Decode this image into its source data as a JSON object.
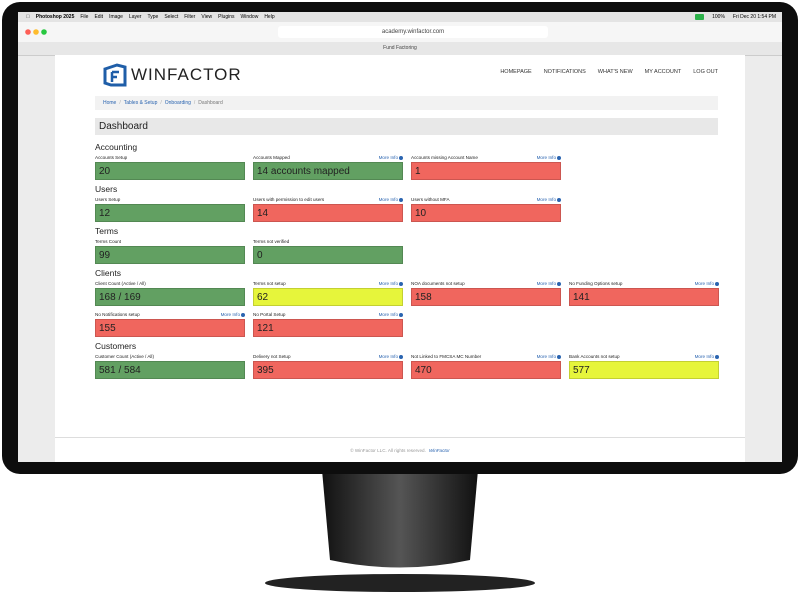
{
  "menubar": {
    "app": "Photoshop 2025",
    "menus": [
      "File",
      "Edit",
      "Image",
      "Layer",
      "Type",
      "Select",
      "Filter",
      "View",
      "Plugins",
      "Window",
      "Help"
    ],
    "battery": "100%",
    "clock": "Fri Dec 20  1:54 PM"
  },
  "browser": {
    "url": "academy.winfactor.com",
    "tab": "Fund Factoring"
  },
  "site": {
    "logo": "WINFACTOR",
    "nav": [
      "HOMEPAGE",
      "NOTIFICATIONS",
      "WHAT'S NEW",
      "MY ACCOUNT",
      "LOG OUT"
    ],
    "breadcrumb": [
      "Home",
      "Tables & Setup",
      "Onboarding",
      "Dashboard"
    ],
    "heading": "Dashboard",
    "sections": [
      {
        "title": "Accounting",
        "tiles": [
          {
            "label": "Accounts Setup",
            "value": 20,
            "status": "green"
          },
          {
            "label": "Accounts Mapped",
            "value": "14 accounts mapped",
            "status": "green",
            "more": "More Info"
          },
          {
            "label": "Accounts missing Account Name",
            "value": 1,
            "status": "red",
            "more": "More Info"
          }
        ]
      },
      {
        "title": "Users",
        "tiles": [
          {
            "label": "Users Setup",
            "value": 12,
            "status": "green"
          },
          {
            "label": "Users with permission to edit users",
            "value": 14,
            "status": "red",
            "more": "More Info"
          },
          {
            "label": "Users without MFA",
            "value": 10,
            "status": "red",
            "more": "More Info"
          }
        ]
      },
      {
        "title": "Terms",
        "tiles": [
          {
            "label": "Terms Count",
            "value": 99,
            "status": "green"
          },
          {
            "label": "Terms not verified",
            "value": 0,
            "status": "green"
          }
        ]
      },
      {
        "title": "Clients",
        "tiles": [
          {
            "label": "Client Count (Active / All)",
            "value": "168 / 169",
            "status": "green"
          },
          {
            "label": "Terms not setup",
            "value": 62,
            "status": "yellow",
            "more": "More Info"
          },
          {
            "label": "NOA documents not setup",
            "value": 158,
            "status": "red",
            "more": "More Info"
          },
          {
            "label": "No Funding Options setup",
            "value": 141,
            "status": "red",
            "more": "More Info"
          },
          {
            "label": "No Notifications setup",
            "value": 155,
            "status": "red",
            "more": "More Info"
          },
          {
            "label": "No Portal Setup",
            "value": 121,
            "status": "red",
            "more": "More Info"
          }
        ]
      },
      {
        "title": "Customers",
        "tiles": [
          {
            "label": "Customer Count (Active / All)",
            "value": "581 / 584",
            "status": "green"
          },
          {
            "label": "Delivery not Setup",
            "value": 395,
            "status": "red",
            "more": "More Info"
          },
          {
            "label": "Not Linked to FMCSA MC Number",
            "value": 470,
            "status": "red",
            "more": "More Info"
          },
          {
            "label": "Bank Accounts not setup",
            "value": 577,
            "status": "yellow",
            "more": "More Info"
          }
        ]
      }
    ],
    "footer": {
      "copyright": "© WinFactor LLC. All rights reserved.",
      "brand": "WinFactor"
    }
  }
}
